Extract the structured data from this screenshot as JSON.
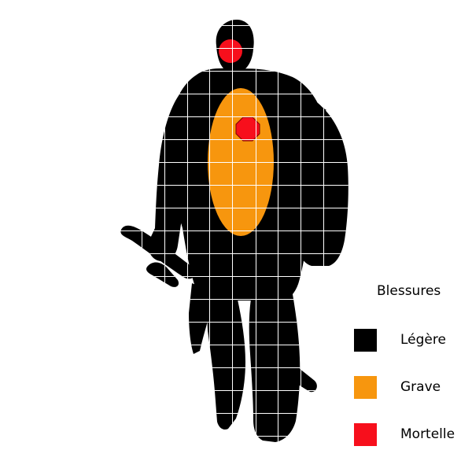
{
  "figure": {
    "silhouette_color": "#000000",
    "grid_color": "#ffffff",
    "zones": [
      {
        "name": "grave-zone",
        "severity": "Grave",
        "color": "#f7960e",
        "shape": "ellipse"
      },
      {
        "name": "mortelle-zone-head",
        "severity": "Mortelle",
        "color": "#f70f1c",
        "shape": "circle"
      },
      {
        "name": "mortelle-zone-heart",
        "severity": "Mortelle",
        "color": "#f70f1c",
        "shape": "octagon"
      }
    ]
  },
  "legend": {
    "title": "Blessures",
    "items": [
      {
        "label": "Légère",
        "color": "#000000"
      },
      {
        "label": "Grave",
        "color": "#f7960e"
      },
      {
        "label": "Mortelle",
        "color": "#f70f1c"
      }
    ]
  }
}
